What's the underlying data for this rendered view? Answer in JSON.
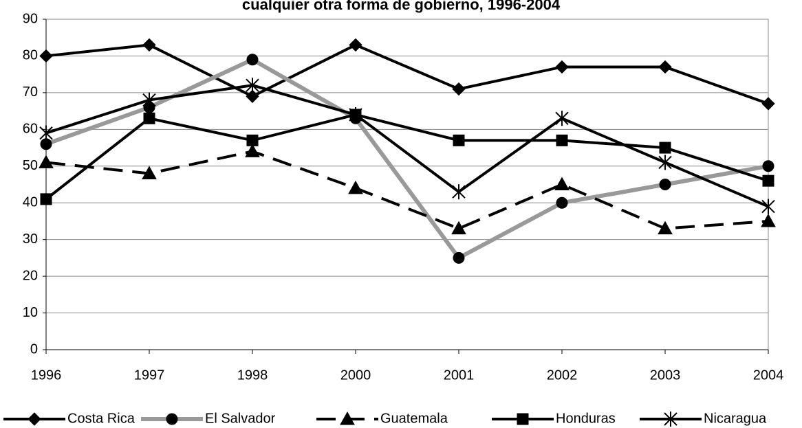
{
  "chart_data": {
    "type": "line",
    "title": "cualquier otra forma de gobierno, 1996-2004",
    "categories": [
      "1996",
      "1997",
      "1998",
      "2000",
      "2001",
      "2002",
      "2003",
      "2004"
    ],
    "series": [
      {
        "name": "Costa Rica",
        "color": "#000000",
        "marker": "diamond",
        "dash": "solid",
        "values": [
          80,
          83,
          69,
          83,
          71,
          77,
          77,
          67
        ]
      },
      {
        "name": "El Salvador",
        "color": "#999999",
        "marker": "circle",
        "dash": "solid",
        "values": [
          56,
          66,
          79,
          63,
          25,
          40,
          45,
          50
        ]
      },
      {
        "name": "Guatemala",
        "color": "#000000",
        "marker": "triangle",
        "dash": "dashed",
        "values": [
          51,
          48,
          54,
          44,
          33,
          45,
          33,
          35
        ]
      },
      {
        "name": "Honduras",
        "color": "#000000",
        "marker": "square",
        "dash": "solid",
        "values": [
          41,
          63,
          57,
          64,
          57,
          57,
          55,
          46
        ]
      },
      {
        "name": "Nicaragua",
        "color": "#000000",
        "marker": "star",
        "dash": "solid",
        "values": [
          59,
          68,
          72,
          64,
          43,
          63,
          51,
          39
        ]
      }
    ],
    "ylim": [
      0,
      90
    ],
    "yticks": [
      0,
      10,
      20,
      30,
      40,
      50,
      60,
      70,
      80,
      90
    ],
    "grid": true,
    "legend": "bottom"
  }
}
